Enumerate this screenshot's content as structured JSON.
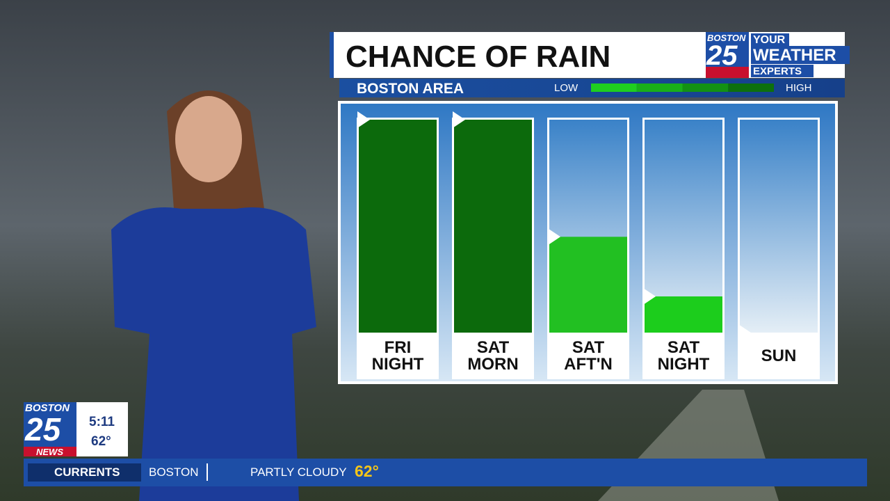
{
  "chart_data": {
    "type": "bar",
    "title": "CHANCE OF RAIN",
    "subtitle": "BOSTON AREA",
    "categories": [
      "FRI NIGHT",
      "SAT MORN",
      "SAT AFT'N",
      "SAT NIGHT",
      "SUN"
    ],
    "values": [
      100,
      100,
      45,
      17,
      0
    ],
    "colors": [
      "#0c6a0c",
      "#0c6a0c",
      "#22c022",
      "#1ccd1c",
      "#1ccd1c"
    ],
    "ylim": [
      0,
      100
    ],
    "scale": {
      "low": "LOW",
      "high": "HIGH",
      "colors": [
        "#1fcf1f",
        "#19b019",
        "#139113",
        "#0d700d"
      ]
    }
  },
  "logo": {
    "station": "BOSTON",
    "number": "25",
    "line1": "YOUR",
    "line2": "WEATHER",
    "line3": "EXPERTS"
  },
  "bug": {
    "station": "BOSTON",
    "number": "25",
    "brand": "NEWS",
    "time": "5:11",
    "temp": "62°"
  },
  "ticker": {
    "label": "CURRENTS",
    "city": "BOSTON",
    "condition": "PARTLY CLOUDY",
    "temp": "62°"
  }
}
